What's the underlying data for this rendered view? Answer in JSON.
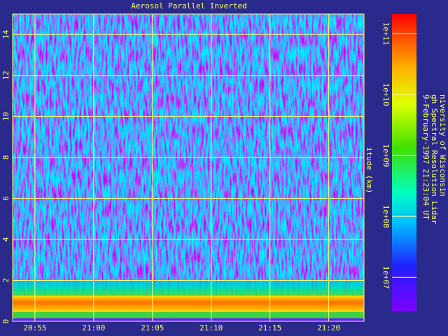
{
  "chart_data": {
    "type": "heatmap",
    "title": "Aerosol Parallel Inverted",
    "y_label": "itude (km)",
    "ylim": [
      0,
      15
    ],
    "yticks": [
      0,
      2,
      4,
      6,
      8,
      10,
      12,
      14
    ],
    "xlim": [
      1253.1,
      1283
    ],
    "xticks": [
      {
        "value": 1255,
        "label": "20:55"
      },
      {
        "value": 1260,
        "label": "21:00"
      },
      {
        "value": 1265,
        "label": "21:05"
      },
      {
        "value": 1270,
        "label": "21:10"
      },
      {
        "value": 1275,
        "label": "21:15"
      },
      {
        "value": 1280,
        "label": "21:20"
      }
    ],
    "grid": true,
    "colorbar": {
      "scale": "log",
      "lim": [
        2750000,
        210000000000
      ],
      "ticks": [
        {
          "value": 10000000,
          "label": "1e+07"
        },
        {
          "value": 100000000,
          "label": "1e+08"
        },
        {
          "value": 1000000000,
          "label": "1e+09"
        },
        {
          "value": 10000000000,
          "label": "1e+10"
        },
        {
          "value": 100000000000,
          "label": "1e+11"
        }
      ]
    },
    "annotations": [
      "niversity of Wisconsin",
      "gh Spectral Resolution Lidar",
      "9-February-1997 21:23:04 UT"
    ]
  }
}
